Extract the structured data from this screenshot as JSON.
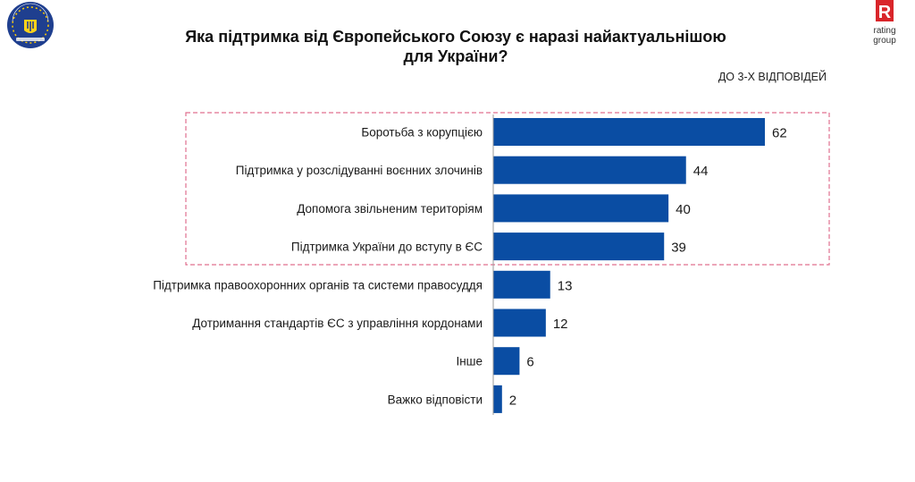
{
  "header": {
    "title_line1": "Яка підтримка від Європейського Союзу є наразі найактуальнішою",
    "title_line2": "для України?",
    "note": "ДО 3-Х ВІДПОВІДЕЙ",
    "left_logo_icon": "eu-ukraine-emblem-icon",
    "right_logo_icon": "rating-group-logo-icon",
    "right_logo_letter": "R",
    "right_logo_line1": "rating",
    "right_logo_line2": "group"
  },
  "chart_data": {
    "type": "bar",
    "orientation": "horizontal",
    "title": "Яка підтримка від Європейського Союзу є наразі найактуальнішою для України?",
    "categories": [
      "Боротьба з корупцією",
      "Підтримка у розслідуванні воєнних злочинів",
      "Допомога звільненим територіям",
      "Підтримка України до вступу в ЄС",
      "Підтримка правоохоронних органів та системи правосуддя",
      "Дотримання стандартів ЄС з управління кордонами",
      "Інше",
      "Важко відповісти"
    ],
    "values": [
      62,
      44,
      40,
      39,
      13,
      12,
      6,
      2
    ],
    "highlighted_top": 4,
    "xlim": [
      0,
      62
    ],
    "bar_color": "#0a4da3",
    "highlight_border_color": "#e0708f",
    "grid": false,
    "legend": "none"
  }
}
